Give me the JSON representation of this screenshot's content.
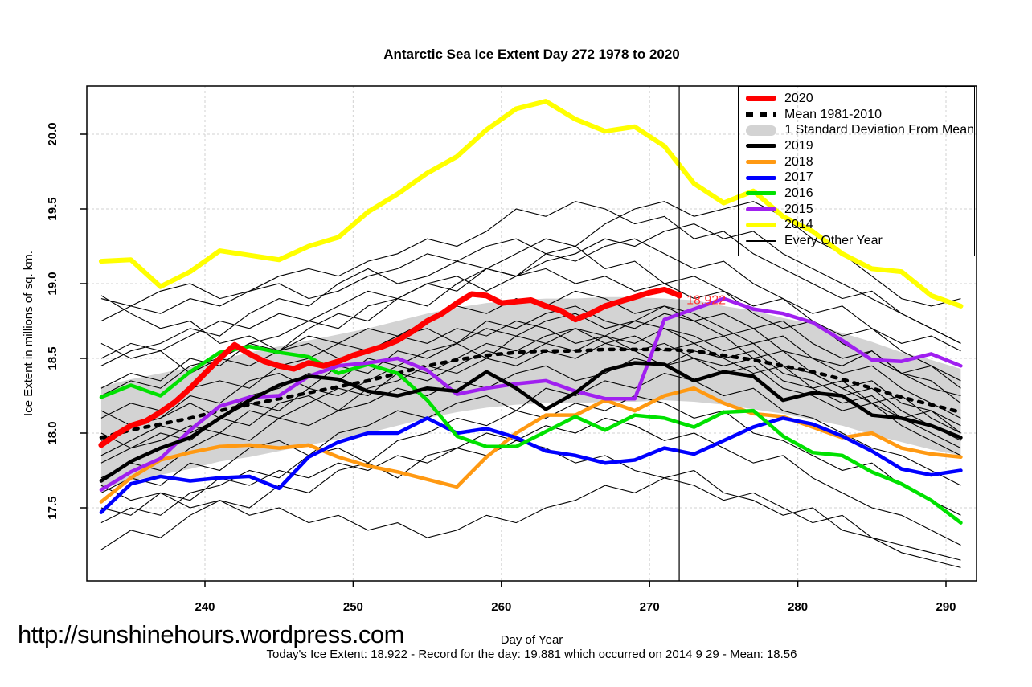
{
  "title": "Antarctic Sea Ice Extent Day 272 1978 to 2020",
  "footer": {
    "url": "http://sunshinehours.wordpress.com",
    "info": "Today's Ice Extent: 18.922  - Record for the day: 19.881 which occurred on 2014 9 29  - Mean: 18.56"
  },
  "annotation": {
    "text": "18.922",
    "day": 272,
    "value": 18.922,
    "color": "#FF3030"
  },
  "chart_data": {
    "type": "line",
    "title": "Antarctic Sea Ice Extent Day 272 1978 to 2020",
    "xlabel": "Day of Year",
    "ylabel": "Ice Extent in millions of sq. km.",
    "x_ticks": [
      240,
      250,
      260,
      270,
      280,
      290
    ],
    "y_ticks": [
      17.5,
      18.0,
      18.5,
      19.0,
      19.5,
      20.0
    ],
    "xlim": [
      232,
      292.6
    ],
    "ylim": [
      17.0,
      20.32
    ],
    "grid": true,
    "legend_position": "topright",
    "marker_day": 272,
    "days": [
      233,
      235,
      237,
      239,
      241,
      243,
      245,
      247,
      249,
      251,
      253,
      255,
      257,
      259,
      261,
      263,
      265,
      267,
      269,
      271,
      273,
      275,
      277,
      279,
      281,
      283,
      285,
      287,
      289,
      291
    ],
    "band": {
      "name": "1 Standard Deviation From Mean",
      "color": "#D3D3D3",
      "upper": [
        18.31,
        18.36,
        18.4,
        18.44,
        18.49,
        18.54,
        18.58,
        18.62,
        18.66,
        18.7,
        18.75,
        18.8,
        18.84,
        18.87,
        18.89,
        18.9,
        18.9,
        18.91,
        18.91,
        18.9,
        18.89,
        18.85,
        18.82,
        18.77,
        18.73,
        18.67,
        18.61,
        18.54,
        18.49,
        18.43
      ],
      "lower": [
        17.63,
        17.68,
        17.72,
        17.76,
        17.81,
        17.84,
        17.88,
        17.92,
        17.96,
        18.0,
        18.05,
        18.1,
        18.14,
        18.17,
        18.19,
        18.2,
        18.2,
        18.21,
        18.21,
        18.22,
        18.21,
        18.19,
        18.16,
        18.13,
        18.09,
        18.05,
        17.99,
        17.94,
        17.89,
        17.85
      ]
    },
    "series": [
      {
        "name": "2020",
        "color": "#FF0000",
        "width": 7,
        "days": [
          233,
          234,
          235,
          236,
          237,
          238,
          239,
          240,
          241,
          242,
          243,
          244,
          245,
          246,
          247,
          248,
          249,
          250,
          251,
          252,
          253,
          254,
          255,
          256,
          257,
          258,
          259,
          260,
          261,
          262,
          263,
          264,
          265,
          266,
          267,
          268,
          269,
          270,
          271,
          272
        ],
        "values": [
          17.92,
          17.99,
          18.05,
          18.08,
          18.14,
          18.21,
          18.3,
          18.4,
          18.5,
          18.59,
          18.53,
          18.48,
          18.45,
          18.43,
          18.47,
          18.45,
          18.48,
          18.52,
          18.55,
          18.58,
          18.62,
          18.68,
          18.75,
          18.8,
          18.87,
          18.93,
          18.92,
          18.87,
          18.88,
          18.89,
          18.85,
          18.82,
          18.76,
          18.8,
          18.85,
          18.88,
          18.91,
          18.94,
          18.96,
          18.922
        ]
      },
      {
        "name": "Mean 1981-2010",
        "color": "#000000",
        "width": 4.5,
        "dash": true,
        "values": [
          17.97,
          18.02,
          18.06,
          18.1,
          18.15,
          18.19,
          18.23,
          18.27,
          18.31,
          18.35,
          18.4,
          18.45,
          18.49,
          18.52,
          18.54,
          18.55,
          18.55,
          18.56,
          18.56,
          18.56,
          18.55,
          18.52,
          18.49,
          18.45,
          18.41,
          18.36,
          18.3,
          18.24,
          18.19,
          18.14
        ]
      },
      {
        "name": "2019",
        "color": "#000000",
        "width": 4.5,
        "values": [
          17.68,
          17.81,
          17.9,
          17.97,
          18.1,
          18.22,
          18.32,
          18.38,
          18.36,
          18.28,
          18.25,
          18.3,
          18.28,
          18.41,
          18.3,
          18.16,
          18.27,
          18.42,
          18.47,
          18.46,
          18.35,
          18.41,
          18.38,
          18.22,
          18.27,
          18.25,
          18.12,
          18.1,
          18.05,
          17.97
        ]
      },
      {
        "name": "2018",
        "color": "#FF9912",
        "width": 4.5,
        "values": [
          17.54,
          17.7,
          17.82,
          17.87,
          17.91,
          17.92,
          17.9,
          17.92,
          17.84,
          17.78,
          17.74,
          17.69,
          17.64,
          17.84,
          18.0,
          18.12,
          18.12,
          18.22,
          18.15,
          18.25,
          18.3,
          18.2,
          18.13,
          18.11,
          18.04,
          17.97,
          18.0,
          17.9,
          17.86,
          17.84
        ]
      },
      {
        "name": "2017",
        "color": "#0000FF",
        "width": 4.5,
        "values": [
          17.47,
          17.66,
          17.71,
          17.68,
          17.7,
          17.71,
          17.63,
          17.84,
          17.94,
          18.0,
          18.0,
          18.1,
          18.0,
          18.03,
          17.97,
          17.88,
          17.85,
          17.8,
          17.82,
          17.9,
          17.86,
          17.95,
          18.04,
          18.1,
          18.06,
          17.98,
          17.88,
          17.76,
          17.72,
          17.75
        ]
      },
      {
        "name": "2016",
        "color": "#00E100",
        "width": 4.5,
        "values": [
          18.24,
          18.32,
          18.25,
          18.41,
          18.54,
          18.58,
          18.54,
          18.51,
          18.4,
          18.46,
          18.4,
          18.22,
          17.98,
          17.91,
          17.91,
          18.01,
          18.11,
          18.02,
          18.12,
          18.1,
          18.04,
          18.14,
          18.15,
          17.98,
          17.87,
          17.85,
          17.74,
          17.66,
          17.55,
          17.4
        ]
      },
      {
        "name": "2015",
        "color": "#A020F0",
        "width": 4.5,
        "values": [
          17.62,
          17.74,
          17.83,
          18.02,
          18.18,
          18.24,
          18.25,
          18.38,
          18.45,
          18.47,
          18.5,
          18.42,
          18.26,
          18.3,
          18.33,
          18.35,
          18.28,
          18.23,
          18.23,
          18.76,
          18.83,
          18.9,
          18.83,
          18.8,
          18.74,
          18.62,
          18.49,
          18.48,
          18.53,
          18.45
        ]
      },
      {
        "name": "2014",
        "color": "#FFFF00",
        "width": 6,
        "values": [
          19.15,
          19.16,
          18.98,
          19.08,
          19.22,
          19.19,
          19.16,
          19.25,
          19.31,
          19.48,
          19.6,
          19.74,
          19.85,
          20.03,
          20.17,
          20.22,
          20.1,
          20.02,
          20.05,
          19.92,
          19.67,
          19.54,
          19.62,
          19.45,
          19.35,
          19.2,
          19.1,
          19.08,
          18.92,
          18.85
        ]
      }
    ],
    "background_series_name": "Every Other Year",
    "background_series": [
      [
        18.9,
        18.85,
        18.95,
        19.0,
        18.9,
        18.95,
        19.05,
        19.1,
        19.05,
        19.15,
        19.2,
        19.3,
        19.25,
        19.35,
        19.5,
        19.45,
        19.55,
        19.5,
        19.4,
        19.45,
        19.3,
        19.35,
        19.2,
        19.1,
        19.0,
        18.9,
        18.95,
        18.8,
        18.7,
        18.6
      ],
      [
        18.45,
        18.55,
        18.6,
        18.7,
        18.65,
        18.8,
        18.9,
        18.85,
        19.0,
        19.1,
        19.0,
        19.05,
        19.15,
        19.1,
        19.2,
        19.3,
        19.25,
        19.4,
        19.5,
        19.55,
        19.45,
        19.5,
        19.55,
        19.45,
        19.3,
        19.2,
        19.05,
        18.9,
        18.85,
        18.9
      ],
      [
        18.25,
        18.35,
        18.3,
        18.45,
        18.5,
        18.6,
        18.55,
        18.7,
        18.8,
        18.75,
        18.9,
        18.85,
        19.0,
        19.1,
        19.05,
        19.2,
        19.15,
        19.25,
        19.3,
        19.2,
        19.1,
        19.15,
        19.0,
        18.9,
        18.8,
        18.85,
        18.7,
        18.6,
        18.65,
        18.55
      ],
      [
        18.1,
        18.2,
        18.15,
        18.3,
        18.35,
        18.3,
        18.45,
        18.5,
        18.6,
        18.55,
        18.65,
        18.7,
        18.6,
        18.75,
        18.7,
        18.8,
        18.85,
        18.75,
        18.7,
        18.8,
        18.75,
        18.65,
        18.7,
        18.55,
        18.5,
        18.4,
        18.45,
        18.3,
        18.2,
        18.1
      ],
      [
        17.95,
        18.05,
        18.1,
        18.2,
        18.1,
        18.25,
        18.3,
        18.4,
        18.35,
        18.5,
        18.45,
        18.55,
        18.6,
        18.5,
        18.65,
        18.6,
        18.7,
        18.65,
        18.75,
        18.7,
        18.6,
        18.65,
        18.5,
        18.55,
        18.4,
        18.3,
        18.35,
        18.2,
        18.15,
        18.05
      ],
      [
        17.8,
        17.9,
        18.0,
        17.95,
        18.1,
        18.05,
        18.2,
        18.25,
        18.15,
        18.3,
        18.35,
        18.45,
        18.4,
        18.5,
        18.45,
        18.55,
        18.5,
        18.6,
        18.55,
        18.45,
        18.5,
        18.4,
        18.45,
        18.3,
        18.25,
        18.15,
        18.2,
        18.05,
        17.95,
        17.85
      ],
      [
        17.6,
        17.7,
        17.65,
        17.8,
        17.75,
        17.9,
        17.95,
        17.85,
        18.0,
        18.05,
        18.15,
        18.1,
        18.2,
        18.25,
        18.15,
        18.3,
        18.25,
        18.35,
        18.3,
        18.4,
        18.35,
        18.25,
        18.3,
        18.15,
        18.1,
        18.0,
        17.9,
        17.85,
        17.75,
        17.65
      ],
      [
        17.22,
        17.35,
        17.3,
        17.45,
        17.55,
        17.5,
        17.65,
        17.6,
        17.75,
        17.8,
        17.7,
        17.85,
        17.9,
        18.0,
        17.95,
        18.05,
        18.0,
        18.1,
        18.05,
        17.95,
        18.0,
        17.9,
        17.8,
        17.85,
        17.7,
        17.6,
        17.5,
        17.45,
        17.35,
        17.25
      ],
      [
        17.5,
        17.45,
        17.6,
        17.55,
        17.7,
        17.65,
        17.75,
        17.7,
        17.8,
        17.75,
        17.85,
        17.8,
        17.9,
        17.85,
        17.95,
        17.9,
        17.8,
        17.85,
        17.75,
        17.7,
        17.75,
        17.6,
        17.55,
        17.45,
        17.5,
        17.35,
        17.3,
        17.2,
        17.15,
        17.1
      ],
      [
        18.6,
        18.5,
        18.55,
        18.4,
        18.5,
        18.45,
        18.55,
        18.65,
        18.6,
        18.7,
        18.65,
        18.75,
        18.85,
        18.8,
        18.9,
        18.85,
        18.95,
        18.9,
        18.8,
        18.85,
        18.75,
        18.8,
        18.7,
        18.75,
        18.6,
        18.5,
        18.55,
        18.4,
        18.3,
        18.25
      ],
      [
        18.92,
        18.8,
        18.7,
        18.75,
        18.6,
        18.65,
        18.55,
        18.6,
        18.5,
        18.55,
        18.65,
        18.6,
        18.7,
        18.65,
        18.75,
        18.7,
        18.6,
        18.65,
        18.55,
        18.6,
        18.5,
        18.45,
        18.5,
        18.35,
        18.3,
        18.35,
        18.2,
        18.1,
        18.15,
        18.0
      ],
      [
        17.7,
        17.8,
        17.75,
        17.9,
        18.0,
        17.95,
        18.1,
        18.05,
        18.15,
        18.2,
        18.3,
        18.25,
        18.35,
        18.3,
        18.4,
        18.45,
        18.35,
        18.4,
        18.5,
        18.45,
        18.55,
        18.5,
        18.4,
        18.45,
        18.3,
        18.2,
        18.25,
        18.1,
        18.0,
        17.9
      ],
      [
        18.3,
        18.4,
        18.35,
        18.5,
        18.45,
        18.6,
        18.65,
        18.75,
        18.7,
        18.85,
        18.9,
        19.0,
        18.95,
        19.1,
        19.05,
        19.15,
        19.2,
        19.3,
        19.25,
        19.35,
        19.4,
        19.3,
        19.35,
        19.2,
        19.1,
        19.0,
        18.9,
        18.8,
        18.7,
        18.6
      ],
      [
        18.0,
        17.9,
        17.95,
        18.05,
        18.0,
        18.15,
        18.1,
        18.2,
        18.3,
        18.25,
        18.4,
        18.35,
        18.45,
        18.55,
        18.5,
        18.6,
        18.55,
        18.65,
        18.6,
        18.7,
        18.65,
        18.55,
        18.6,
        18.45,
        18.4,
        18.3,
        18.2,
        18.25,
        18.1,
        18.0
      ],
      [
        17.65,
        17.55,
        17.6,
        17.5,
        17.55,
        17.45,
        17.5,
        17.4,
        17.45,
        17.35,
        17.4,
        17.3,
        17.35,
        17.45,
        17.4,
        17.5,
        17.55,
        17.65,
        17.6,
        17.7,
        17.65,
        17.55,
        17.6,
        17.5,
        17.4,
        17.45,
        17.3,
        17.25,
        17.2,
        17.15
      ],
      [
        18.75,
        18.85,
        18.8,
        18.9,
        18.85,
        18.95,
        19.0,
        18.9,
        18.95,
        19.05,
        19.1,
        19.2,
        19.15,
        19.25,
        19.3,
        19.2,
        19.25,
        19.1,
        19.15,
        19.0,
        19.05,
        18.95,
        18.85,
        18.9,
        18.75,
        18.65,
        18.7,
        18.55,
        18.45,
        18.35
      ],
      [
        17.4,
        17.5,
        17.45,
        17.6,
        17.65,
        17.75,
        17.7,
        17.85,
        17.9,
        17.8,
        17.95,
        18.0,
        18.1,
        18.05,
        18.15,
        18.1,
        18.2,
        18.15,
        18.25,
        18.2,
        18.1,
        18.15,
        18.0,
        17.95,
        17.85,
        17.75,
        17.8,
        17.65,
        17.55,
        17.45
      ],
      [
        18.5,
        18.6,
        18.55,
        18.65,
        18.75,
        18.7,
        18.8,
        18.75,
        18.85,
        18.95,
        18.9,
        19.0,
        19.05,
        18.95,
        19.05,
        19.1,
        19.0,
        19.05,
        18.95,
        19.0,
        18.9,
        18.95,
        18.8,
        18.7,
        18.75,
        18.6,
        18.5,
        18.4,
        18.45,
        18.3
      ],
      [
        17.85,
        17.95,
        18.05,
        18.0,
        18.1,
        18.2,
        18.15,
        18.3,
        18.25,
        18.35,
        18.45,
        18.4,
        18.5,
        18.6,
        18.55,
        18.65,
        18.7,
        18.6,
        18.65,
        18.55,
        18.6,
        18.5,
        18.55,
        18.4,
        18.35,
        18.25,
        18.3,
        18.15,
        18.05,
        17.95
      ],
      [
        18.15,
        18.05,
        18.1,
        18.25,
        18.2,
        18.35,
        18.4,
        18.3,
        18.45,
        18.4,
        18.55,
        18.5,
        18.6,
        18.7,
        18.65,
        18.75,
        18.8,
        18.7,
        18.75,
        18.85,
        18.8,
        18.7,
        18.6,
        18.65,
        18.5,
        18.45,
        18.55,
        18.4,
        18.35,
        18.2
      ]
    ],
    "legend": [
      {
        "label": "2020",
        "type": "line",
        "color": "#FF0000",
        "height": 7
      },
      {
        "label": "Mean 1981-2010",
        "type": "dash",
        "color": "#000000",
        "height": 5
      },
      {
        "label": "1 Standard Deviation From Mean",
        "type": "band",
        "color": "#D3D3D3",
        "height": 13
      },
      {
        "label": "2019",
        "type": "line",
        "color": "#000000",
        "height": 5
      },
      {
        "label": "2018",
        "type": "line",
        "color": "#FF9912",
        "height": 5
      },
      {
        "label": "2017",
        "type": "line",
        "color": "#0000FF",
        "height": 5
      },
      {
        "label": "2016",
        "type": "line",
        "color": "#00E100",
        "height": 5
      },
      {
        "label": "2015",
        "type": "line",
        "color": "#A020F0",
        "height": 5
      },
      {
        "label": "2014",
        "type": "line",
        "color": "#FFFF00",
        "height": 6
      },
      {
        "label": "Every Other Year",
        "type": "thin",
        "color": "#000000",
        "height": 1.5
      }
    ]
  }
}
